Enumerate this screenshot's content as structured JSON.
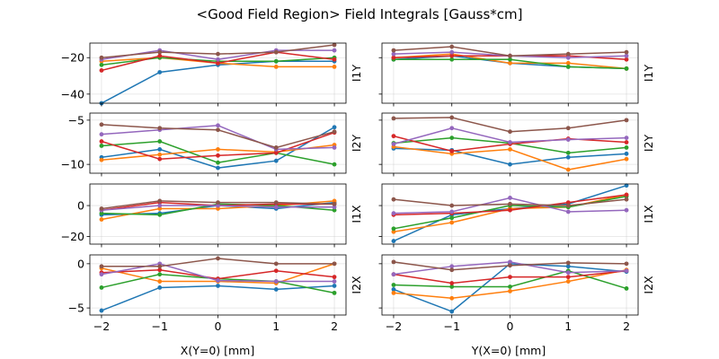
{
  "title": "<Good Field Region> Field Integrals [Gauss*cm]",
  "colors": [
    "#1f77b4",
    "#ff7f0e",
    "#2ca02c",
    "#d62728",
    "#9467bd",
    "#8c564b"
  ],
  "chart_data": [
    {
      "type": "line",
      "name": "I1Y-X",
      "ylabel": "I1Y",
      "xlabel": "",
      "x": [
        -2,
        -1,
        0,
        1,
        2
      ],
      "ylim": [
        -45,
        -12
      ],
      "yticks": [
        -20,
        -40
      ],
      "series": [
        {
          "values": [
            -45,
            -28,
            -24,
            -22,
            -22
          ]
        },
        {
          "values": [
            -22,
            -20,
            -23,
            -25,
            -25
          ]
        },
        {
          "values": [
            -24,
            -20,
            -22,
            -22,
            -20
          ]
        },
        {
          "values": [
            -27,
            -19,
            -23,
            -17,
            -21
          ]
        },
        {
          "values": [
            -21,
            -16,
            -21,
            -16,
            -16
          ]
        },
        {
          "values": [
            -20,
            -17,
            -18,
            -17,
            -13
          ]
        }
      ]
    },
    {
      "type": "line",
      "name": "I1Y-Y",
      "ylabel": "I1Y",
      "xlabel": "",
      "x": [
        -2,
        -1,
        0,
        1,
        2
      ],
      "ylim": [
        -45,
        -12
      ],
      "yticks": [
        -20,
        -40
      ],
      "series": [
        {
          "values": [
            -21,
            -19,
            -23,
            -25,
            -26
          ]
        },
        {
          "values": [
            -20,
            -18,
            -23,
            -23,
            -26
          ]
        },
        {
          "values": [
            -21,
            -21,
            -21,
            -25,
            -26
          ]
        },
        {
          "values": [
            -20,
            -19,
            -19,
            -19,
            -21
          ]
        },
        {
          "values": [
            -18,
            -17,
            -19,
            -20,
            -19
          ]
        },
        {
          "values": [
            -16,
            -14,
            -19,
            -18,
            -17
          ]
        }
      ]
    },
    {
      "type": "line",
      "name": "I2Y-X",
      "ylabel": "I2Y",
      "xlabel": "",
      "x": [
        -2,
        -1,
        0,
        1,
        2
      ],
      "ylim": [
        -11.0,
        -4.2
      ],
      "yticks": [
        -5,
        -10
      ],
      "series": [
        {
          "values": [
            -9.2,
            -8.3,
            -10.4,
            -9.6,
            -5.8
          ]
        },
        {
          "values": [
            -9.5,
            -8.9,
            -8.3,
            -8.6,
            -7.8
          ]
        },
        {
          "values": [
            -7.9,
            -7.4,
            -9.8,
            -8.7,
            -10.0
          ]
        },
        {
          "values": [
            -7.4,
            -9.4,
            -9.0,
            -8.7,
            -6.4
          ]
        },
        {
          "values": [
            -6.6,
            -6.1,
            -5.6,
            -8.3,
            -8.1
          ]
        },
        {
          "values": [
            -5.5,
            -5.9,
            -6.1,
            -8.1,
            -6.3
          ]
        }
      ]
    },
    {
      "type": "line",
      "name": "I2Y-Y",
      "ylabel": "I2Y",
      "xlabel": "",
      "x": [
        -2,
        -1,
        0,
        1,
        2
      ],
      "ylim": [
        -11.0,
        -4.2
      ],
      "yticks": [
        -5,
        -10
      ],
      "series": [
        {
          "values": [
            -8.2,
            -8.4,
            -10.0,
            -9.2,
            -8.8
          ]
        },
        {
          "values": [
            -8.0,
            -8.8,
            -8.3,
            -10.6,
            -9.4
          ]
        },
        {
          "values": [
            -7.6,
            -7.0,
            -7.6,
            -8.7,
            -8.1
          ]
        },
        {
          "values": [
            -6.8,
            -8.5,
            -7.7,
            -7.1,
            -7.5
          ]
        },
        {
          "values": [
            -7.7,
            -5.9,
            -7.5,
            -7.2,
            -7.0
          ]
        },
        {
          "values": [
            -4.8,
            -4.7,
            -6.3,
            -5.9,
            -5.0
          ]
        }
      ]
    },
    {
      "type": "line",
      "name": "I1X-X",
      "ylabel": "I1X",
      "xlabel": "",
      "x": [
        -2,
        -1,
        0,
        1,
        2
      ],
      "ylim": [
        -25,
        14
      ],
      "yticks": [
        0,
        -20
      ],
      "series": [
        {
          "values": [
            -6,
            -5,
            0,
            -2,
            2
          ]
        },
        {
          "values": [
            -9,
            -2,
            -2,
            0,
            3
          ]
        },
        {
          "values": [
            -5,
            -6,
            1,
            0,
            -3
          ]
        },
        {
          "values": [
            -3,
            2,
            0,
            1,
            1
          ]
        },
        {
          "values": [
            -3,
            0,
            0,
            -1,
            -1
          ]
        },
        {
          "values": [
            -2,
            3,
            2,
            2,
            1
          ]
        }
      ]
    },
    {
      "type": "line",
      "name": "I1X-Y",
      "ylabel": "I1X",
      "xlabel": "",
      "x": [
        -2,
        -1,
        0,
        1,
        2
      ],
      "ylim": [
        -25,
        14
      ],
      "yticks": [
        0,
        -20
      ],
      "series": [
        {
          "values": [
            -23,
            -6,
            -2,
            1,
            13
          ]
        },
        {
          "values": [
            -17,
            -11,
            -2,
            -1,
            7
          ]
        },
        {
          "values": [
            -15,
            -8,
            0,
            -1,
            6
          ]
        },
        {
          "values": [
            -6,
            -5,
            -3,
            2,
            7
          ]
        },
        {
          "values": [
            -5,
            -4,
            5,
            -4,
            -3
          ]
        },
        {
          "values": [
            4,
            0,
            1,
            0,
            4
          ]
        }
      ]
    },
    {
      "type": "line",
      "name": "I2X-X",
      "ylabel": "I2X",
      "xlabel": "",
      "x": [
        -2,
        -1,
        0,
        1,
        2
      ],
      "ylim": [
        -5.8,
        1.0
      ],
      "yticks": [
        0,
        -5
      ],
      "series": [
        {
          "values": [
            -5.3,
            -2.7,
            -2.5,
            -2.9,
            -2.5
          ]
        },
        {
          "values": [
            -0.5,
            -2.0,
            -2.0,
            -2.2,
            0.0
          ]
        },
        {
          "values": [
            -2.7,
            -1.2,
            -1.7,
            -2.0,
            -3.3
          ]
        },
        {
          "values": [
            -1.0,
            -0.7,
            -1.7,
            -0.8,
            -1.5
          ]
        },
        {
          "values": [
            -1.2,
            0.0,
            -1.9,
            -2.0,
            -2.0
          ]
        },
        {
          "values": [
            -0.3,
            -0.3,
            0.6,
            0.0,
            0.0
          ]
        }
      ]
    },
    {
      "type": "line",
      "name": "I2X-Y",
      "ylabel": "I2X",
      "xlabel": "",
      "x": [
        -2,
        -1,
        0,
        1,
        2
      ],
      "ylim": [
        -5.8,
        1.0
      ],
      "yticks": [
        0,
        -5
      ],
      "series": [
        {
          "values": [
            -2.9,
            -5.4,
            0.0,
            -0.3,
            -0.9
          ]
        },
        {
          "values": [
            -3.3,
            -3.9,
            -3.1,
            -2.0,
            -0.7
          ]
        },
        {
          "values": [
            -2.4,
            -2.6,
            -2.6,
            -0.8,
            -2.8
          ]
        },
        {
          "values": [
            -1.2,
            -2.2,
            -1.5,
            -1.5,
            -0.8
          ]
        },
        {
          "values": [
            -1.2,
            -0.3,
            0.2,
            -1.0,
            -0.8
          ]
        },
        {
          "values": [
            0.2,
            -0.7,
            -0.2,
            0.1,
            0.0
          ]
        }
      ]
    }
  ],
  "bottom_xlabels": [
    "X(Y=0) [mm]",
    "Y(X=0) [mm]"
  ],
  "xticks": [
    -2,
    -1,
    0,
    1,
    2
  ]
}
